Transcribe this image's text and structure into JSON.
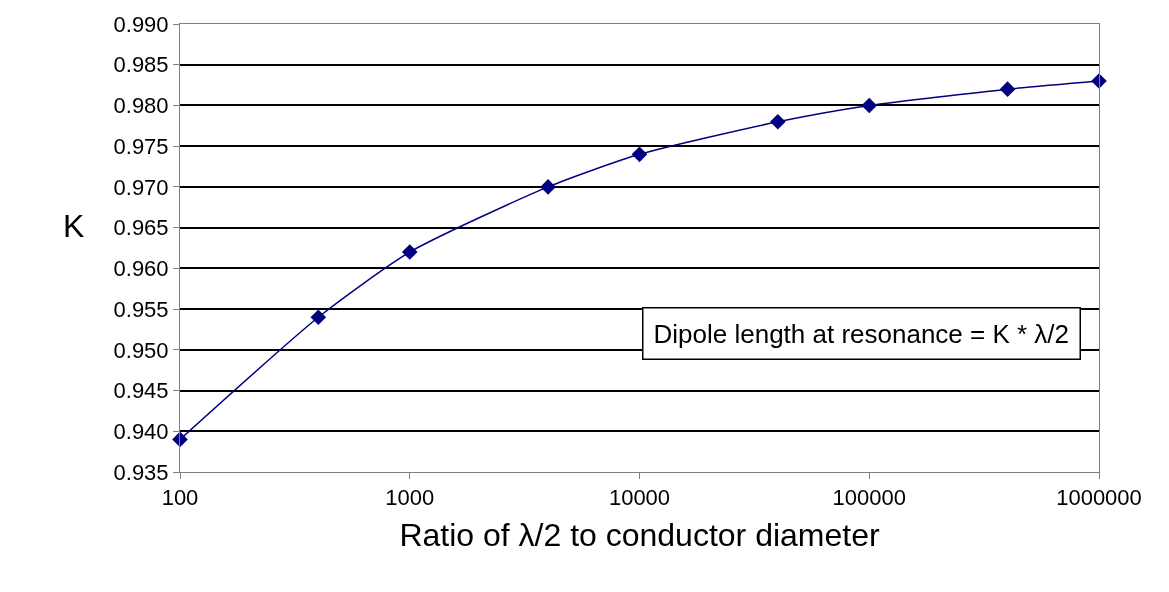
{
  "chart_data": {
    "type": "line",
    "xlabel": "Ratio of λ/2 to conductor diameter",
    "ylabel": "K",
    "x": [
      100,
      400,
      1000,
      4000,
      10000,
      40000,
      100000,
      400000,
      1000000
    ],
    "series": [
      {
        "color": "#000080",
        "values": [
          0.939,
          0.954,
          0.962,
          0.97,
          0.974,
          0.978,
          0.98,
          0.982,
          0.983
        ]
      }
    ],
    "log": "x",
    "xlim": [
      100,
      1000000
    ],
    "xticks": [
      100,
      1000,
      10000,
      100000,
      1000000
    ],
    "ylim": [
      0.935,
      0.99
    ],
    "yticks": [
      {
        "value": 0.935,
        "label": "0.935"
      },
      {
        "value": 0.94,
        "label": "0.940"
      },
      {
        "value": 0.945,
        "label": "0.945"
      },
      {
        "value": 0.95,
        "label": "0.950"
      },
      {
        "value": 0.955,
        "label": "0.955"
      },
      {
        "value": 0.96,
        "label": "0.960"
      },
      {
        "value": 0.965,
        "label": "0.965"
      },
      {
        "value": 0.97,
        "label": "0.970"
      },
      {
        "value": 0.975,
        "label": "0.975"
      },
      {
        "value": 0.98,
        "label": "0.980"
      },
      {
        "value": 0.985,
        "label": "0.985"
      },
      {
        "value": 0.99,
        "label": "0.990"
      }
    ],
    "grid": "y",
    "marker": "diamond",
    "line_style": "solid",
    "legend": false,
    "annotations": [
      "Dipole length at resonance = K * λ/2"
    ]
  }
}
